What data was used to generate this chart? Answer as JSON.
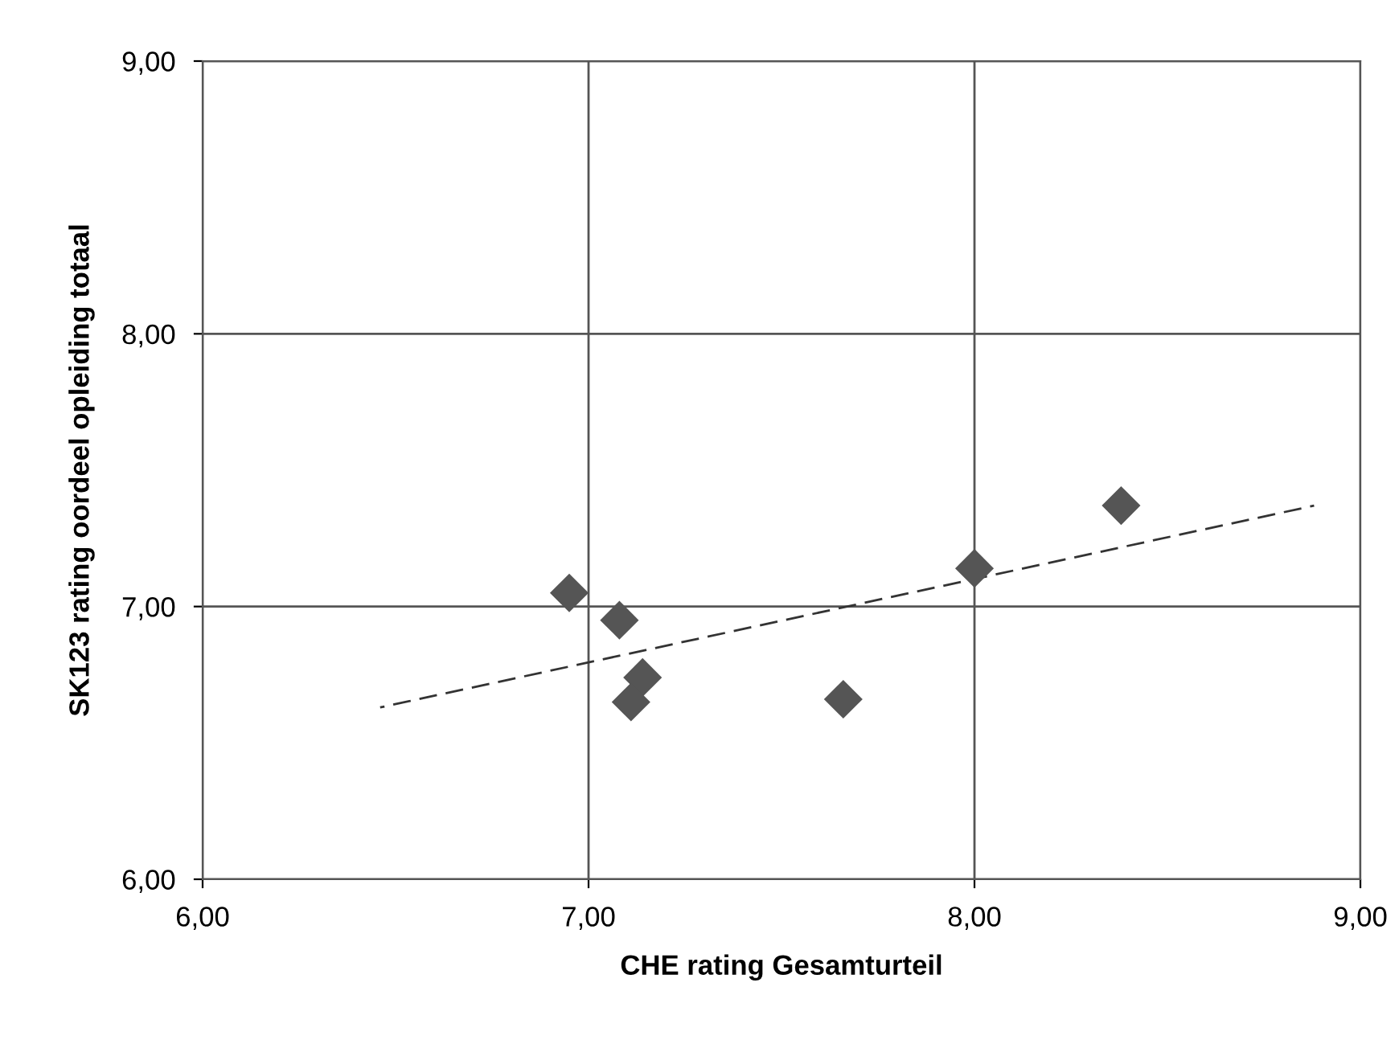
{
  "chart_data": {
    "type": "scatter",
    "xlabel": "CHE rating Gesamturteil",
    "ylabel": "SK123 rating oordeel opleiding totaal",
    "x": [
      6.95,
      7.08,
      7.14,
      7.11,
      7.66,
      8.0,
      8.38
    ],
    "series": [
      {
        "color": "#555555",
        "marker": "diamond",
        "values": [
          7.05,
          6.95,
          6.74,
          6.65,
          6.66,
          7.14,
          7.37
        ]
      },
      {
        "type": "line",
        "color": "#333333",
        "line_style": "dashed",
        "marker": "none",
        "x": [
          6.46,
          8.88
        ],
        "values": [
          6.63,
          7.37
        ]
      }
    ],
    "xlim": [
      6,
      9
    ],
    "ylim": [
      6,
      9
    ],
    "xticks": [
      {
        "value": 6,
        "label": "6,00"
      },
      {
        "value": 7,
        "label": "7,00"
      },
      {
        "value": 8,
        "label": "8,00"
      },
      {
        "value": 9,
        "label": "9,00"
      }
    ],
    "yticks": [
      {
        "value": 6,
        "label": "6,00"
      },
      {
        "value": 7,
        "label": "7,00"
      },
      {
        "value": 8,
        "label": "8,00"
      },
      {
        "value": 9,
        "label": "9,00"
      }
    ],
    "grid": true,
    "legend": false
  }
}
